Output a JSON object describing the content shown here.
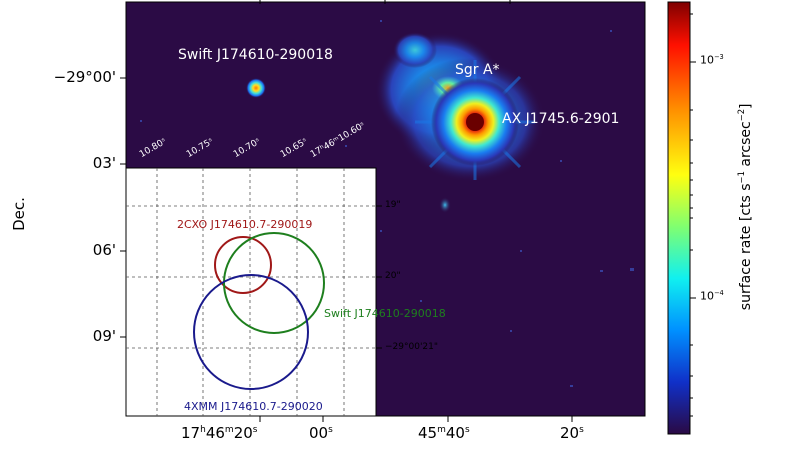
{
  "axes": {
    "ylabel": "Dec.",
    "yticks": [
      "−29°00'",
      "03'",
      "06'",
      "09'"
    ],
    "xticks": [
      {
        "main": "17",
        "h": "h",
        "mid": "46",
        "m": "m",
        "tail": "20",
        "s": "s"
      },
      {
        "main": "00",
        "s": "s"
      },
      {
        "main": "45",
        "m": "m",
        "tail": "40",
        "s": "s"
      },
      {
        "main": "20",
        "s": "s"
      }
    ]
  },
  "sources": {
    "swift_main": "Swift J174610-290018",
    "sgr_a": "Sgr A*",
    "ax": "AX J1745.6-2901"
  },
  "inset": {
    "ra_ticks": [
      "10.80ˢ",
      "10.75ˢ",
      "10.70ˢ",
      "10.65ˢ",
      "17ʰ46ᵐ10.60ˢ"
    ],
    "dec_ticks": [
      "19\"",
      "20\"",
      "−29°00'21\""
    ],
    "circles": {
      "chandra": {
        "label": "2CXO J174610.7-290019",
        "color": "#a01818"
      },
      "swift": {
        "label": "Swift J174610-290018",
        "color": "#1e7f1e"
      },
      "xmm": {
        "label": "4XMM J174610.7-290020",
        "color": "#1a1a8c"
      }
    }
  },
  "colorbar": {
    "label_pre": "surface rate [cts s",
    "label_mid": "−1",
    "label_arc": " arcsec",
    "label_sup": "−2",
    "label_post": "]",
    "ticks": [
      {
        "base": "10",
        "exp": "−3"
      },
      {
        "base": "10",
        "exp": "−4"
      }
    ],
    "colors": [
      "#7f0000",
      "#ff0000",
      "#ff8c00",
      "#ffff00",
      "#7fff7f",
      "#00ffff",
      "#0080ff",
      "#0000c0",
      "#2a0a44"
    ]
  }
}
